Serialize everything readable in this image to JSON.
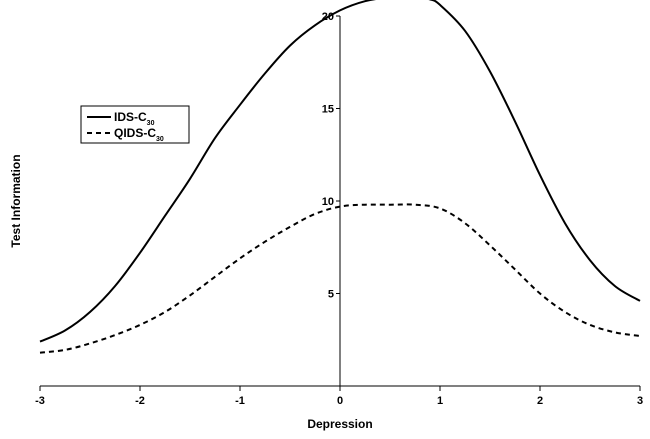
{
  "chart_data": {
    "type": "line",
    "xlabel": "Depression",
    "ylabel": "Test Information",
    "xlim": [
      -3,
      3
    ],
    "ylim": [
      0,
      20
    ],
    "x_ticks": [
      "-3",
      "-2",
      "-1",
      "0",
      "1",
      "2",
      "3"
    ],
    "y_ticks": [
      "5",
      "10",
      "15",
      "20"
    ],
    "legend_position": "upper-left",
    "series": [
      {
        "name": "IDS-C30",
        "name_main": "IDS-C",
        "name_sub": "30",
        "line_style": "solid",
        "color": "#000000",
        "points": [
          [
            -3.0,
            2.4
          ],
          [
            -2.75,
            3.0
          ],
          [
            -2.5,
            4.0
          ],
          [
            -2.25,
            5.4
          ],
          [
            -2.0,
            7.2
          ],
          [
            -1.75,
            9.2
          ],
          [
            -1.5,
            11.2
          ],
          [
            -1.25,
            13.4
          ],
          [
            -1.0,
            15.2
          ],
          [
            -0.75,
            16.9
          ],
          [
            -0.5,
            18.4
          ],
          [
            -0.25,
            19.5
          ],
          [
            0.0,
            20.3
          ],
          [
            0.25,
            20.8
          ],
          [
            0.5,
            21.0
          ],
          [
            0.75,
            21.0
          ],
          [
            0.9,
            20.9
          ],
          [
            1.0,
            20.6
          ],
          [
            1.25,
            19.2
          ],
          [
            1.5,
            17.0
          ],
          [
            1.75,
            14.3
          ],
          [
            2.0,
            11.4
          ],
          [
            2.25,
            8.8
          ],
          [
            2.5,
            6.8
          ],
          [
            2.75,
            5.4
          ],
          [
            3.0,
            4.6
          ]
        ]
      },
      {
        "name": "QIDS-C30",
        "name_main": "QIDS-C",
        "name_sub": "30",
        "line_style": "dashed",
        "color": "#000000",
        "points": [
          [
            -3.0,
            1.8
          ],
          [
            -2.75,
            1.95
          ],
          [
            -2.5,
            2.3
          ],
          [
            -2.25,
            2.75
          ],
          [
            -2.0,
            3.3
          ],
          [
            -1.75,
            4.0
          ],
          [
            -1.5,
            4.9
          ],
          [
            -1.25,
            5.9
          ],
          [
            -1.0,
            6.9
          ],
          [
            -0.75,
            7.8
          ],
          [
            -0.5,
            8.6
          ],
          [
            -0.25,
            9.3
          ],
          [
            0.0,
            9.7
          ],
          [
            0.25,
            9.8
          ],
          [
            0.5,
            9.8
          ],
          [
            0.75,
            9.8
          ],
          [
            1.0,
            9.6
          ],
          [
            1.25,
            8.8
          ],
          [
            1.5,
            7.6
          ],
          [
            1.75,
            6.3
          ],
          [
            2.0,
            5.0
          ],
          [
            2.25,
            4.0
          ],
          [
            2.5,
            3.3
          ],
          [
            2.75,
            2.9
          ],
          [
            3.0,
            2.7
          ]
        ]
      }
    ]
  }
}
